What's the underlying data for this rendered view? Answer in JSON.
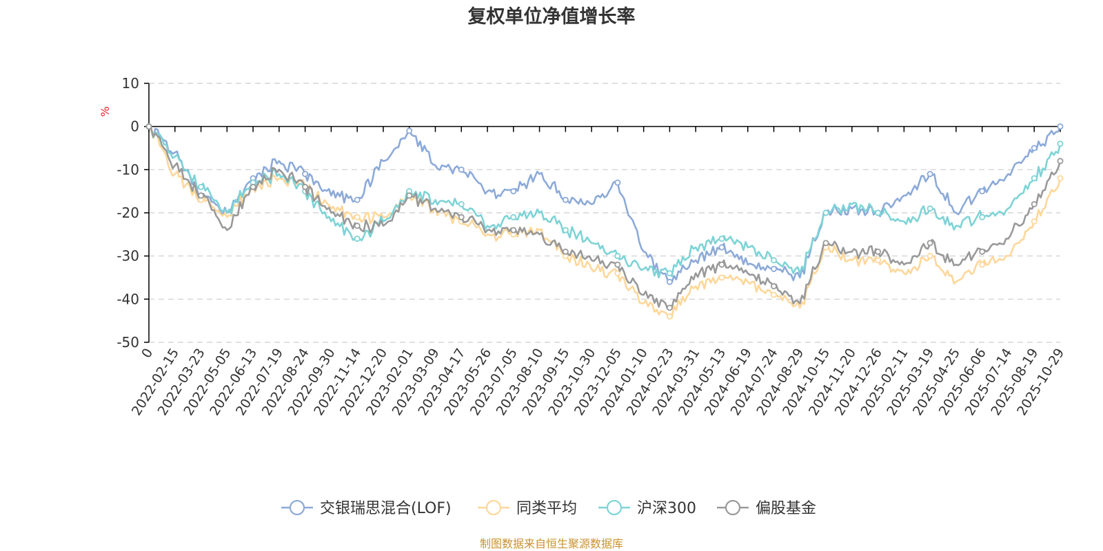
{
  "chart_data": {
    "type": "line",
    "title": "复权单位净值增长率",
    "ylabel": "%",
    "xlabel": "",
    "ylim": [
      -50,
      10
    ],
    "yticks": [
      10,
      0,
      -10,
      -20,
      -30,
      -40,
      -50
    ],
    "x": [
      "0",
      "2022-02-15",
      "2022-03-23",
      "2022-05-05",
      "2022-06-13",
      "2022-07-19",
      "2022-08-24",
      "2022-09-30",
      "2022-11-14",
      "2022-12-20",
      "2023-02-01",
      "2023-03-09",
      "2023-04-17",
      "2023-05-26",
      "2023-07-05",
      "2023-08-10",
      "2023-09-15",
      "2023-10-30",
      "2023-12-05",
      "2024-01-10",
      "2024-02-23",
      "2024-03-31",
      "2024-05-13",
      "2024-06-19",
      "2024-07-24",
      "2024-08-29",
      "2024-10-15",
      "2024-11-20",
      "2024-12-26",
      "2025-02-11",
      "2025-03-19",
      "2025-04-25",
      "2025-06-06",
      "2025-07-14",
      "2025-08-19",
      "2025-10-29"
    ],
    "series": [
      {
        "name": "交银瑞思混合(LOF)",
        "color": "#8caad8",
        "values": [
          0,
          -6,
          -16,
          -20,
          -12,
          -8,
          -11,
          -16,
          -17,
          -8,
          -1,
          -9,
          -10,
          -15,
          -15,
          -11,
          -17,
          -18,
          -13,
          -29,
          -36,
          -31,
          -28,
          -32,
          -33,
          -35,
          -20,
          -19,
          -20,
          -16,
          -11,
          -20,
          -15,
          -11,
          -5,
          0
        ]
      },
      {
        "name": "同类平均",
        "color": "#fdd79a",
        "values": [
          0,
          -11,
          -17,
          -21,
          -14,
          -12,
          -14,
          -19,
          -21,
          -21,
          -16,
          -19,
          -22,
          -25,
          -25,
          -24,
          -30,
          -33,
          -34,
          -41,
          -44,
          -37,
          -35,
          -36,
          -39,
          -42,
          -28,
          -31,
          -31,
          -34,
          -30,
          -36,
          -32,
          -30,
          -22,
          -12
        ]
      },
      {
        "name": "沪深300",
        "color": "#7ed3d6",
        "values": [
          0,
          -7,
          -14,
          -20,
          -13,
          -11,
          -15,
          -22,
          -26,
          -22,
          -15,
          -17,
          -18,
          -23,
          -21,
          -20,
          -24,
          -27,
          -30,
          -33,
          -34,
          -28,
          -26,
          -28,
          -31,
          -34,
          -20,
          -18,
          -20,
          -22,
          -19,
          -23,
          -21,
          -19,
          -12,
          -4
        ]
      },
      {
        "name": "偏股基金",
        "color": "#999999",
        "values": [
          0,
          -9,
          -16,
          -24,
          -14,
          -10,
          -14,
          -20,
          -23,
          -23,
          -16,
          -19,
          -21,
          -24,
          -24,
          -25,
          -29,
          -31,
          -32,
          -39,
          -42,
          -34,
          -32,
          -34,
          -37,
          -41,
          -27,
          -29,
          -29,
          -32,
          -27,
          -32,
          -29,
          -26,
          -18,
          -8
        ]
      }
    ],
    "legend": "bottom-center"
  },
  "source_text": "制图数据来自恒生聚源数据库"
}
